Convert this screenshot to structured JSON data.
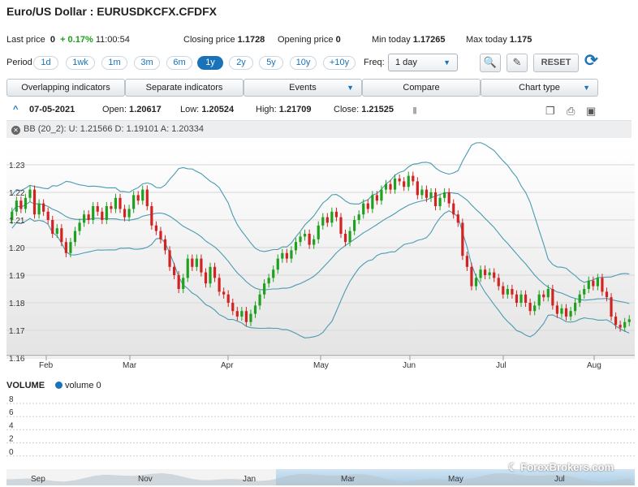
{
  "header": {
    "title": "Euro/US Dollar : EURUSDKCFX.CFDFX"
  },
  "quote": {
    "last_price_label": "Last price",
    "last_price": "0",
    "change": "+ 0.17%",
    "time": "11:00:54",
    "closing_label": "Closing price",
    "closing": "1.1728",
    "opening_label": "Opening price",
    "opening": "0",
    "min_label": "Min today",
    "min": "1.17265",
    "max_label": "Max today",
    "max": "1.175"
  },
  "period": {
    "label": "Period",
    "options": [
      "1d",
      "1wk",
      "1m",
      "3m",
      "6m",
      "1y",
      "2y",
      "5y",
      "10y",
      "+10y"
    ],
    "active": "1y"
  },
  "freq": {
    "label": "Freq:",
    "value": "1 day"
  },
  "tools": {
    "zoom_icon": "zoom-icon",
    "draw_icon": "pencil-icon",
    "reset_label": "RESET",
    "refresh_icon": "refresh-icon"
  },
  "menus": [
    {
      "label": "Overlapping indicators",
      "dropdown": false
    },
    {
      "label": "Separate indicators",
      "dropdown": false
    },
    {
      "label": "Events",
      "dropdown": true
    },
    {
      "label": "Compare",
      "dropdown": false
    },
    {
      "label": "Chart type",
      "dropdown": true
    }
  ],
  "ohlc": {
    "date": "07-05-2021",
    "open_label": "Open:",
    "open": "1.20617",
    "low_label": "Low:",
    "low": "1.20524",
    "high_label": "High:",
    "high": "1.21709",
    "close_label": "Close:",
    "close": "1.21525"
  },
  "indicator": {
    "text": "BB (20_2): U: 1.21566 D: 1.19101 A: 1.20334"
  },
  "colors": {
    "up": "#1fa11f",
    "down": "#d22323",
    "band": "#4a9bb0",
    "accent": "#1a73b8"
  },
  "chart_data": [
    {
      "type": "candlestick",
      "title": "",
      "x_tick_labels": [
        "Feb",
        "Mar",
        "Apr",
        "May",
        "Jun",
        "Jul",
        "Aug"
      ],
      "y_tick_labels": [
        "1.23",
        "1.22",
        "1.21",
        "1.20",
        "1.19",
        "1.18",
        "1.17",
        "1.16"
      ],
      "ylim": [
        1.16,
        1.235
      ],
      "close_series": [
        1.213,
        1.217,
        1.214,
        1.218,
        1.221,
        1.212,
        1.216,
        1.213,
        1.21,
        1.205,
        1.207,
        1.202,
        1.198,
        1.202,
        1.206,
        1.209,
        1.212,
        1.21,
        1.215,
        1.213,
        1.21,
        1.215,
        1.214,
        1.218,
        1.214,
        1.211,
        1.214,
        1.219,
        1.217,
        1.221,
        1.215,
        1.208,
        1.206,
        1.203,
        1.199,
        1.193,
        1.19,
        1.185,
        1.189,
        1.196,
        1.193,
        1.196,
        1.191,
        1.187,
        1.193,
        1.189,
        1.184,
        1.183,
        1.18,
        1.177,
        1.175,
        1.177,
        1.173,
        1.176,
        1.179,
        1.183,
        1.187,
        1.189,
        1.192,
        1.196,
        1.198,
        1.196,
        1.199,
        1.202,
        1.204,
        1.205,
        1.201,
        1.203,
        1.208,
        1.211,
        1.209,
        1.213,
        1.211,
        1.205,
        1.202,
        1.206,
        1.21,
        1.212,
        1.216,
        1.214,
        1.219,
        1.217,
        1.221,
        1.223,
        1.221,
        1.225,
        1.224,
        1.222,
        1.226,
        1.224,
        1.219,
        1.221,
        1.218,
        1.22,
        1.215,
        1.218,
        1.22,
        1.216,
        1.212,
        1.209,
        1.197,
        1.193,
        1.186,
        1.189,
        1.192,
        1.19,
        1.191,
        1.189,
        1.186,
        1.183,
        1.185,
        1.183,
        1.18,
        1.183,
        1.18,
        1.177,
        1.179,
        1.183,
        1.182,
        1.185,
        1.179,
        1.176,
        1.178,
        1.175,
        1.177,
        1.18,
        1.183,
        1.185,
        1.188,
        1.186,
        1.189,
        1.184,
        1.182,
        1.175,
        1.172,
        1.171,
        1.173,
        1.174
      ]
    },
    {
      "type": "bar",
      "title": "VOLUME",
      "legend": [
        "volume 0"
      ],
      "y_tick_labels": [
        "8",
        "6",
        "4",
        "2",
        "0"
      ],
      "ylim": [
        0,
        8
      ]
    },
    {
      "type": "area",
      "x_tick_labels": [
        "Sep",
        "Nov",
        "Jan",
        "Mar",
        "May",
        "Jul"
      ]
    }
  ],
  "watermark": "ForexBrokers.com"
}
